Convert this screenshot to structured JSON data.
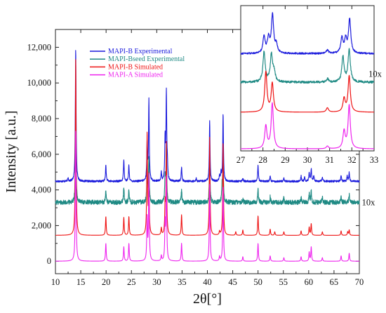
{
  "chart_data": [
    {
      "type": "line",
      "xlabel": "2θ[°]",
      "ylabel": "Intensity [a.u.]",
      "xlim": [
        10,
        70
      ],
      "ylim": [
        -700,
        13000
      ],
      "x_ticks": [
        10,
        15,
        20,
        25,
        30,
        35,
        40,
        45,
        50,
        55,
        60,
        65,
        70
      ],
      "y_ticks": [
        0,
        2000,
        4000,
        6000,
        8000,
        10000,
        12000
      ],
      "y_tick_labels": [
        "0",
        "2,000",
        "4,000",
        "6,000",
        "8,000",
        "10,000",
        "12,000"
      ],
      "grid": false,
      "legend_position": "top-center",
      "annotations": [
        {
          "text": "10x",
          "x": 70.5,
          "y": 3300,
          "color": "#1f8a84"
        }
      ],
      "series": [
        {
          "name": "MAPI-B Experimental",
          "color": "#1a1adc",
          "baseline": 4480,
          "peaks": [
            [
              12.5,
              180
            ],
            [
              14.0,
              7500
            ],
            [
              19.95,
              900
            ],
            [
              23.5,
              1250
            ],
            [
              24.5,
              900
            ],
            [
              28.1,
              2100
            ],
            [
              28.45,
              4550
            ],
            [
              30.9,
              480
            ],
            [
              31.65,
              2300
            ],
            [
              31.9,
              4850
            ],
            [
              32.1,
              800
            ],
            [
              34.9,
              800
            ],
            [
              37.8,
              160
            ],
            [
              40.45,
              3400
            ],
            [
              42.4,
              350
            ],
            [
              42.7,
              450
            ],
            [
              43.1,
              3800
            ],
            [
              47.0,
              180
            ],
            [
              50.0,
              900
            ],
            [
              52.4,
              300
            ],
            [
              55.1,
              200
            ],
            [
              58.5,
              300
            ],
            [
              59.2,
              250
            ],
            [
              60.1,
              500
            ],
            [
              60.5,
              700
            ],
            [
              61.0,
              350
            ],
            [
              62.7,
              250
            ],
            [
              66.4,
              350
            ],
            [
              67.6,
              300
            ],
            [
              68.0,
              500
            ]
          ]
        },
        {
          "name": "MAPI-Bseed Experimental",
          "color": "#1f8a84",
          "baseline": 3300,
          "peaks": [
            [
              14.0,
              4900
            ],
            [
              19.95,
              700
            ],
            [
              23.5,
              850
            ],
            [
              24.5,
              700
            ],
            [
              28.1,
              1800
            ],
            [
              28.45,
              2600
            ],
            [
              31.65,
              1500
            ],
            [
              31.9,
              3200
            ],
            [
              34.9,
              700
            ],
            [
              40.45,
              2500
            ],
            [
              42.9,
              1000
            ],
            [
              43.1,
              2300
            ],
            [
              47.0,
              200
            ],
            [
              50.0,
              800
            ],
            [
              52.4,
              300
            ],
            [
              55.1,
              250
            ],
            [
              58.5,
              300
            ],
            [
              60.1,
              500
            ],
            [
              60.5,
              700
            ],
            [
              62.7,
              300
            ],
            [
              66.4,
              400
            ],
            [
              68.0,
              450
            ]
          ]
        },
        {
          "name": "MAPI-B Simulated",
          "color": "#ee1111",
          "baseline": 1450,
          "peaks": [
            [
              14.0,
              10000
            ],
            [
              19.95,
              1050
            ],
            [
              23.5,
              1000
            ],
            [
              24.5,
              1050
            ],
            [
              28.1,
              5700
            ],
            [
              28.45,
              3200
            ],
            [
              30.9,
              400
            ],
            [
              31.65,
              1600
            ],
            [
              31.9,
              5100
            ],
            [
              34.9,
              1150
            ],
            [
              40.45,
              5500
            ],
            [
              42.4,
              200
            ],
            [
              43.1,
              5200
            ],
            [
              45.6,
              200
            ],
            [
              47.0,
              300
            ],
            [
              50.0,
              1100
            ],
            [
              52.4,
              350
            ],
            [
              53.3,
              200
            ],
            [
              55.1,
              200
            ],
            [
              58.5,
              250
            ],
            [
              60.1,
              450
            ],
            [
              60.5,
              650
            ],
            [
              62.7,
              200
            ],
            [
              66.4,
              250
            ],
            [
              67.7,
              200
            ],
            [
              68.0,
              300
            ]
          ]
        },
        {
          "name": "MAPI-A Simulated",
          "color": "#ee22ee",
          "baseline": 0,
          "peaks": [
            [
              14.0,
              7400
            ],
            [
              19.95,
              1000
            ],
            [
              23.5,
              800
            ],
            [
              24.5,
              1000
            ],
            [
              28.1,
              2400
            ],
            [
              28.45,
              4800
            ],
            [
              30.9,
              300
            ],
            [
              31.65,
              2000
            ],
            [
              31.9,
              4600
            ],
            [
              34.9,
              1000
            ],
            [
              40.45,
              4300
            ],
            [
              42.4,
              250
            ],
            [
              43.1,
              4200
            ],
            [
              47.0,
              250
            ],
            [
              50.0,
              1000
            ],
            [
              52.4,
              300
            ],
            [
              55.1,
              200
            ],
            [
              58.5,
              250
            ],
            [
              60.1,
              500
            ],
            [
              60.5,
              800
            ],
            [
              62.7,
              200
            ],
            [
              66.4,
              300
            ],
            [
              68.0,
              450
            ]
          ]
        }
      ]
    },
    {
      "type": "line",
      "title": "",
      "xlim": [
        27,
        33
      ],
      "x_ticks": [
        27,
        28,
        29,
        30,
        31,
        32,
        33
      ],
      "y_ticks": [],
      "grid": false,
      "annotations": [
        {
          "text": "10x",
          "x": 32.75,
          "y": 10.8,
          "color": "#1f8a84"
        }
      ],
      "series": [
        {
          "name": "MAPI-B Experimental",
          "color": "#1a1adc",
          "baseline": 14.3,
          "peaks": [
            [
              28.05,
              2.5
            ],
            [
              28.25,
              2.2
            ],
            [
              28.43,
              5.7
            ],
            [
              28.6,
              1.2
            ],
            [
              30.9,
              0.5
            ],
            [
              31.55,
              2.3
            ],
            [
              31.72,
              2.0
            ],
            [
              31.9,
              5.1
            ]
          ]
        },
        {
          "name": "MAPI-Bseed Experimental",
          "color": "#1f8a84",
          "baseline": 10.0,
          "peaks": [
            [
              28.05,
              4.5
            ],
            [
              28.38,
              4.0
            ],
            [
              28.5,
              1.5
            ],
            [
              30.9,
              0.5
            ],
            [
              31.6,
              3.8
            ],
            [
              31.88,
              5.0
            ]
          ]
        },
        {
          "name": "MAPI-B Simulated",
          "color": "#ee1111",
          "baseline": 5.5,
          "peaks": [
            [
              28.13,
              6.0
            ],
            [
              28.42,
              4.3
            ],
            [
              30.9,
              0.65
            ],
            [
              31.65,
              2.0
            ],
            [
              31.88,
              5.4
            ]
          ]
        },
        {
          "name": "MAPI-A Simulated",
          "color": "#ee22ee",
          "baseline": 0,
          "peaks": [
            [
              28.13,
              3.4
            ],
            [
              28.42,
              6.8
            ],
            [
              30.9,
              0.4
            ],
            [
              31.65,
              2.6
            ],
            [
              31.88,
              6.5
            ]
          ]
        }
      ]
    }
  ]
}
